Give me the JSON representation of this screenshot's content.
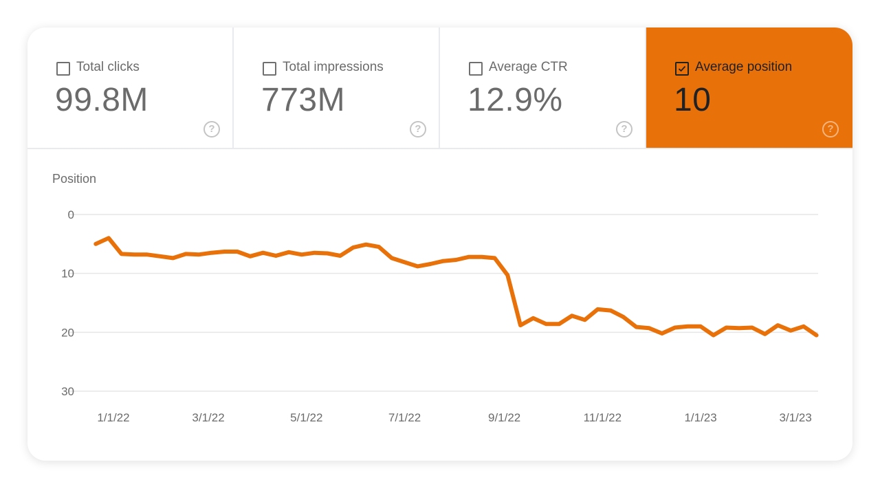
{
  "tiles": [
    {
      "label": "Total clicks",
      "value": "99.8M",
      "checked": false
    },
    {
      "label": "Total impressions",
      "value": "773M",
      "checked": false
    },
    {
      "label": "Average CTR",
      "value": "12.9%",
      "checked": false
    },
    {
      "label": "Average position",
      "value": "10",
      "checked": true
    }
  ],
  "help_icon": "question-circle-icon",
  "colors": {
    "accent": "#e8710a",
    "grid": "#e6e6e6",
    "text": "#6b6b6b"
  },
  "chart_data": {
    "type": "line",
    "ylabel": "Position",
    "y_inverted": true,
    "ylim": [
      0,
      30
    ],
    "yticks": [
      "0",
      "10",
      "20",
      "30"
    ],
    "xtick_labels": [
      "1/1/22",
      "3/1/22",
      "5/1/22",
      "7/1/22",
      "9/1/22",
      "11/1/22",
      "1/1/23",
      "3/1/23"
    ],
    "xtick_dates": [
      "2022-01-01",
      "2022-03-01",
      "2022-05-01",
      "2022-07-01",
      "2022-09-01",
      "2022-11-01",
      "2023-01-01",
      "2023-03-01"
    ],
    "grid": true,
    "series": [
      {
        "color": "#e8710a",
        "x": [
          "2021-12-21",
          "2021-12-29",
          "2022-01-06",
          "2022-01-14",
          "2022-01-22",
          "2022-01-30",
          "2022-02-07",
          "2022-02-15",
          "2022-02-23",
          "2022-03-03",
          "2022-03-11",
          "2022-03-19",
          "2022-03-27",
          "2022-04-04",
          "2022-04-12",
          "2022-04-20",
          "2022-04-28",
          "2022-05-06",
          "2022-05-14",
          "2022-05-22",
          "2022-05-30",
          "2022-06-07",
          "2022-06-15",
          "2022-06-23",
          "2022-07-01",
          "2022-07-09",
          "2022-07-17",
          "2022-07-25",
          "2022-08-02",
          "2022-08-10",
          "2022-08-18",
          "2022-08-26",
          "2022-09-03",
          "2022-09-11",
          "2022-09-19",
          "2022-09-27",
          "2022-10-05",
          "2022-10-13",
          "2022-10-21",
          "2022-10-29",
          "2022-11-06",
          "2022-11-14",
          "2022-11-22",
          "2022-11-30",
          "2022-12-08",
          "2022-12-16",
          "2022-12-24",
          "2023-01-01",
          "2023-01-09",
          "2023-01-17",
          "2023-01-25",
          "2023-02-02",
          "2023-02-10",
          "2023-02-18",
          "2023-02-26",
          "2023-03-06",
          "2023-03-14"
        ],
        "values": [
          5.0,
          4.0,
          6.7,
          6.8,
          6.8,
          7.1,
          7.4,
          6.7,
          6.8,
          6.5,
          6.3,
          6.3,
          7.1,
          6.5,
          7.0,
          6.4,
          6.8,
          6.5,
          6.6,
          7.0,
          5.6,
          5.1,
          5.5,
          7.4,
          8.1,
          8.8,
          8.4,
          7.9,
          7.7,
          7.2,
          7.2,
          7.4,
          10.3,
          18.8,
          17.6,
          18.6,
          18.6,
          17.2,
          17.9,
          16.1,
          16.3,
          17.4,
          19.1,
          19.3,
          20.2,
          19.2,
          19.0,
          19.0,
          20.5,
          19.2,
          19.3,
          19.2,
          20.3,
          18.8,
          19.7,
          19.0,
          20.5
        ]
      }
    ]
  }
}
